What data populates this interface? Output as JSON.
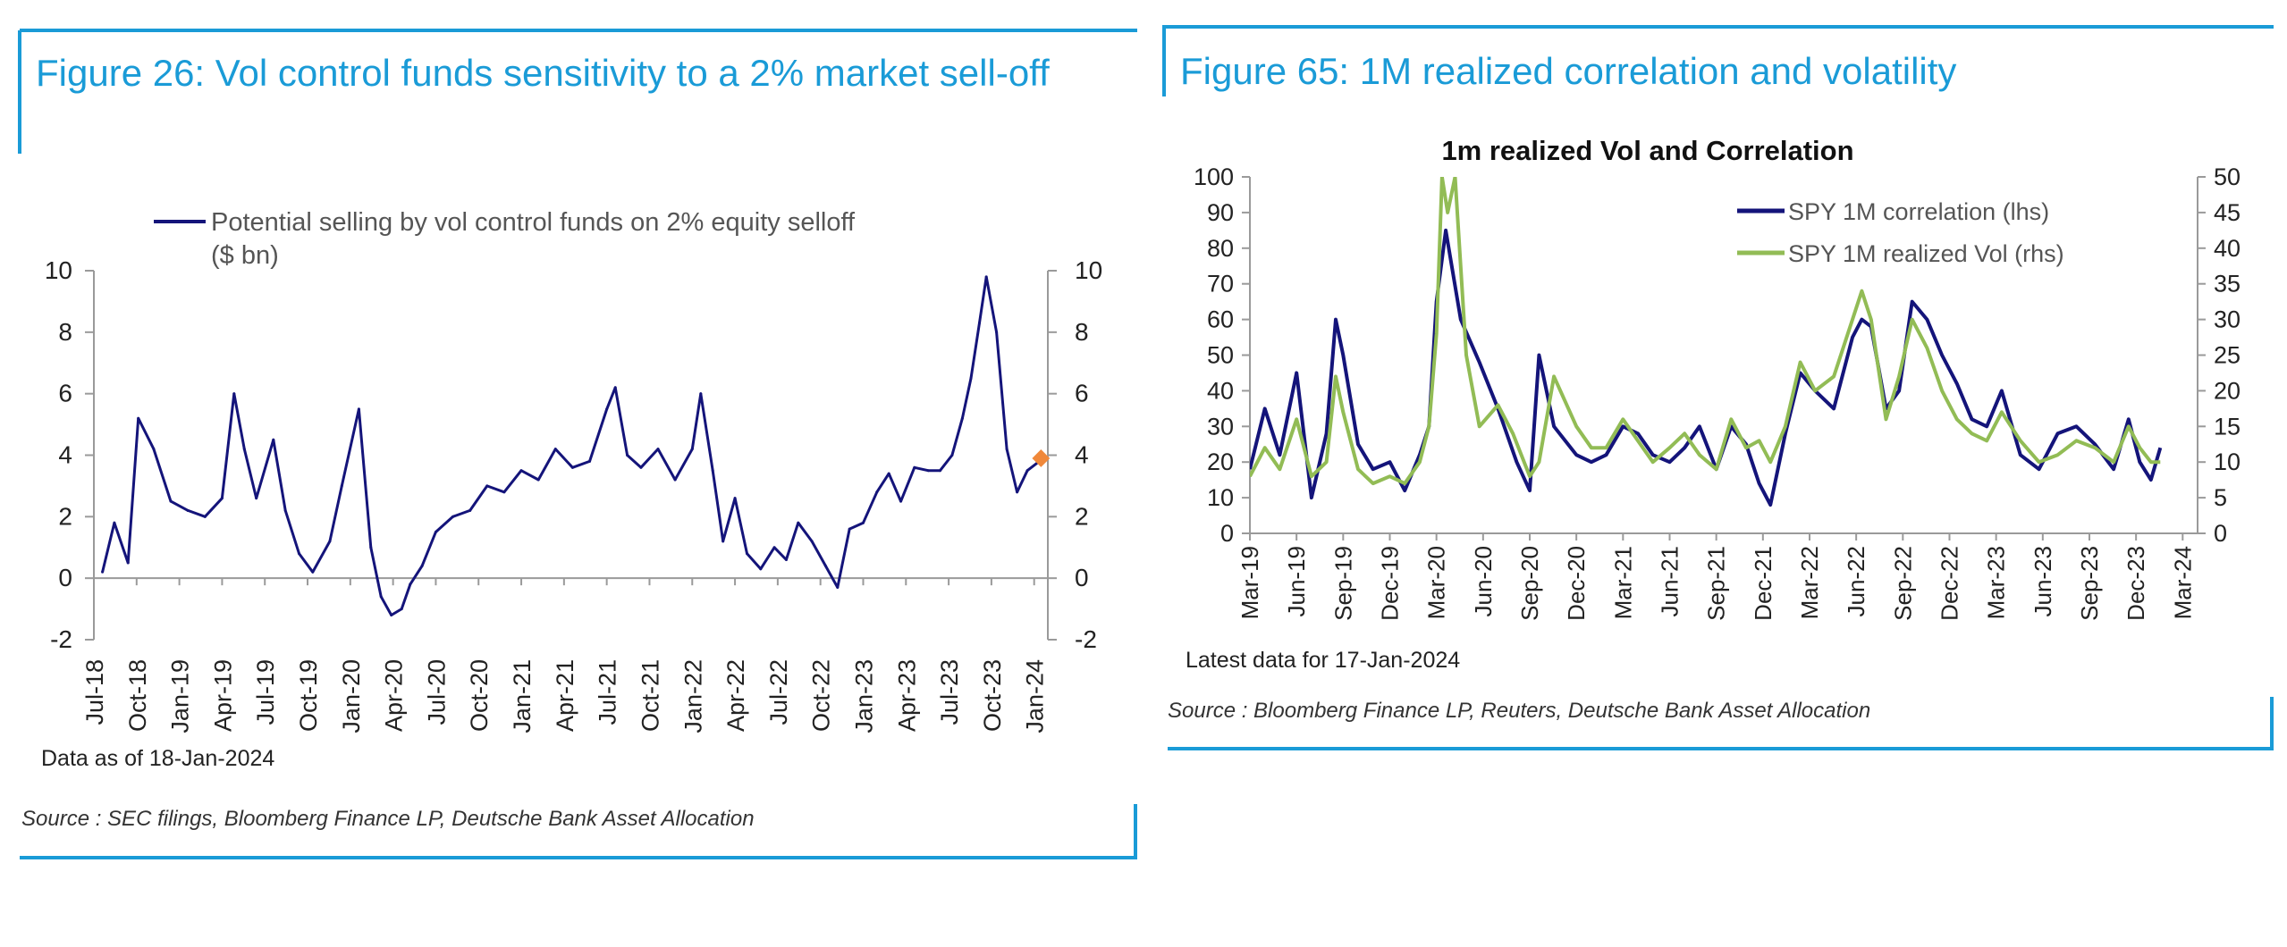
{
  "colors": {
    "title": "#1a9bd7",
    "rule": "#1a9bd7",
    "navy": "#14147a",
    "green": "#92bc55",
    "marker": "#f0883a",
    "axis": "#9a9a9a"
  },
  "fig26": {
    "title": "Figure 26: Vol control funds sensitivity to a 2% market sell-off",
    "legend": "Potential selling by vol control funds on 2% equity selloff ($ bn)",
    "note": "Data as of 18-Jan-2024",
    "source": "Source : SEC filings, Bloomberg Finance LP, Deutsche Bank Asset Allocation"
  },
  "fig65": {
    "title": "Figure 65: 1M realized correlation and volatility",
    "note": "Latest data for 17-Jan-2024",
    "source": "Source : Bloomberg Finance LP, Reuters, Deutsche Bank Asset Allocation"
  },
  "chart_data": [
    {
      "type": "line",
      "id": "fig26",
      "title": "",
      "legend_position": "top",
      "ylabel": "$ bn",
      "ylim": [
        -2,
        10
      ],
      "yticks": [
        -2,
        0,
        2,
        4,
        6,
        8,
        10
      ],
      "xlim": [
        2018.5,
        2024.08
      ],
      "xtick_labels": [
        "Jul-18",
        "Oct-18",
        "Jan-19",
        "Apr-19",
        "Jul-19",
        "Oct-19",
        "Jan-20",
        "Apr-20",
        "Jul-20",
        "Oct-20",
        "Jan-21",
        "Apr-21",
        "Jul-21",
        "Oct-21",
        "Jan-22",
        "Apr-22",
        "Jul-22",
        "Oct-22",
        "Jan-23",
        "Apr-23",
        "Jul-23",
        "Oct-23",
        "Jan-24"
      ],
      "xtick_values": [
        2018.5,
        2018.75,
        2019.0,
        2019.25,
        2019.5,
        2019.75,
        2020.0,
        2020.25,
        2020.5,
        2020.75,
        2021.0,
        2021.25,
        2021.5,
        2021.75,
        2022.0,
        2022.25,
        2022.5,
        2022.75,
        2023.0,
        2023.25,
        2023.5,
        2023.75,
        2024.0
      ],
      "series": [
        {
          "name": "Potential selling by vol control funds on 2% equity selloff ($ bn)",
          "x": [
            2018.55,
            2018.62,
            2018.7,
            2018.76,
            2018.85,
            2018.95,
            2019.05,
            2019.15,
            2019.25,
            2019.32,
            2019.38,
            2019.45,
            2019.55,
            2019.62,
            2019.7,
            2019.78,
            2019.88,
            2019.95,
            2020.05,
            2020.12,
            2020.18,
            2020.24,
            2020.3,
            2020.35,
            2020.42,
            2020.5,
            2020.6,
            2020.7,
            2020.8,
            2020.9,
            2021.0,
            2021.1,
            2021.2,
            2021.3,
            2021.4,
            2021.5,
            2021.55,
            2021.62,
            2021.7,
            2021.8,
            2021.9,
            2022.0,
            2022.05,
            2022.12,
            2022.18,
            2022.25,
            2022.32,
            2022.4,
            2022.48,
            2022.55,
            2022.62,
            2022.7,
            2022.78,
            2022.85,
            2022.92,
            2023.0,
            2023.08,
            2023.15,
            2023.22,
            2023.3,
            2023.38,
            2023.45,
            2023.52,
            2023.58,
            2023.63,
            2023.68,
            2023.72,
            2023.78,
            2023.84,
            2023.9,
            2023.96,
            2024.03
          ],
          "values": [
            0.2,
            1.8,
            0.5,
            5.2,
            4.2,
            2.5,
            2.2,
            2.0,
            2.6,
            6.0,
            4.2,
            2.6,
            4.5,
            2.2,
            0.8,
            0.2,
            1.2,
            3.0,
            5.5,
            1.0,
            -0.6,
            -1.2,
            -1.0,
            -0.2,
            0.4,
            1.5,
            2.0,
            2.2,
            3.0,
            2.8,
            3.5,
            3.2,
            4.2,
            3.6,
            3.8,
            5.5,
            6.2,
            4.0,
            3.6,
            4.2,
            3.2,
            4.2,
            6.0,
            3.5,
            1.2,
            2.6,
            0.8,
            0.3,
            1.0,
            0.6,
            1.8,
            1.2,
            0.4,
            -0.3,
            1.6,
            1.8,
            2.8,
            3.4,
            2.5,
            3.6,
            3.5,
            3.5,
            4.0,
            5.2,
            6.5,
            8.3,
            9.8,
            8.0,
            4.2,
            2.8,
            3.5,
            3.8
          ]
        }
      ],
      "marker": {
        "x": 2024.04,
        "y": 3.9
      }
    },
    {
      "type": "line",
      "id": "fig65",
      "title": "1m realized Vol and Correlation",
      "legend_position": "top-right",
      "ylim_left": [
        0,
        100
      ],
      "yticks_left": [
        0,
        10,
        20,
        30,
        40,
        50,
        60,
        70,
        80,
        90,
        100
      ],
      "ylim_right": [
        0,
        50
      ],
      "yticks_right": [
        0,
        5,
        10,
        15,
        20,
        25,
        30,
        35,
        40,
        45,
        50
      ],
      "xlim": [
        2019.17,
        2024.25
      ],
      "xtick_labels": [
        "Mar-19",
        "Jun-19",
        "Sep-19",
        "Dec-19",
        "Mar-20",
        "Jun-20",
        "Sep-20",
        "Dec-20",
        "Mar-21",
        "Jun-21",
        "Sep-21",
        "Dec-21",
        "Mar-22",
        "Jun-22",
        "Sep-22",
        "Dec-22",
        "Mar-23",
        "Jun-23",
        "Sep-23",
        "Dec-23",
        "Mar-24"
      ],
      "xtick_values": [
        2019.17,
        2019.42,
        2019.67,
        2019.92,
        2020.17,
        2020.42,
        2020.67,
        2020.92,
        2021.17,
        2021.42,
        2021.67,
        2021.92,
        2022.17,
        2022.42,
        2022.67,
        2022.92,
        2023.17,
        2023.42,
        2023.67,
        2023.92,
        2024.17
      ],
      "series": [
        {
          "name": "SPY 1M correlation (lhs)",
          "axis": "left",
          "x": [
            2019.17,
            2019.25,
            2019.33,
            2019.42,
            2019.5,
            2019.58,
            2019.63,
            2019.67,
            2019.75,
            2019.83,
            2019.92,
            2020.0,
            2020.08,
            2020.13,
            2020.17,
            2020.22,
            2020.3,
            2020.4,
            2020.5,
            2020.6,
            2020.67,
            2020.72,
            2020.8,
            2020.92,
            2021.0,
            2021.08,
            2021.17,
            2021.25,
            2021.33,
            2021.42,
            2021.5,
            2021.58,
            2021.67,
            2021.75,
            2021.83,
            2021.9,
            2021.96,
            2022.04,
            2022.12,
            2022.2,
            2022.3,
            2022.4,
            2022.45,
            2022.5,
            2022.58,
            2022.65,
            2022.72,
            2022.8,
            2022.88,
            2022.96,
            2023.04,
            2023.12,
            2023.2,
            2023.3,
            2023.4,
            2023.5,
            2023.6,
            2023.7,
            2023.8,
            2023.88,
            2023.94,
            2024.0,
            2024.05
          ],
          "values": [
            18,
            35,
            22,
            45,
            10,
            28,
            60,
            50,
            25,
            18,
            20,
            12,
            22,
            30,
            65,
            85,
            60,
            48,
            35,
            20,
            12,
            50,
            30,
            22,
            20,
            22,
            30,
            28,
            22,
            20,
            24,
            30,
            18,
            30,
            25,
            14,
            8,
            28,
            45,
            40,
            35,
            55,
            60,
            58,
            35,
            40,
            65,
            60,
            50,
            42,
            32,
            30,
            40,
            22,
            18,
            28,
            30,
            25,
            18,
            32,
            20,
            15,
            24
          ]
        },
        {
          "name": "SPY 1M realized Vol (rhs)",
          "axis": "right",
          "x": [
            2019.17,
            2019.25,
            2019.33,
            2019.42,
            2019.5,
            2019.58,
            2019.63,
            2019.67,
            2019.75,
            2019.83,
            2019.92,
            2020.0,
            2020.08,
            2020.13,
            2020.17,
            2020.2,
            2020.23,
            2020.27,
            2020.33,
            2020.4,
            2020.5,
            2020.58,
            2020.67,
            2020.72,
            2020.8,
            2020.92,
            2021.0,
            2021.08,
            2021.17,
            2021.25,
            2021.33,
            2021.42,
            2021.5,
            2021.58,
            2021.67,
            2021.75,
            2021.83,
            2021.9,
            2021.96,
            2022.04,
            2022.12,
            2022.2,
            2022.3,
            2022.4,
            2022.45,
            2022.5,
            2022.58,
            2022.65,
            2022.72,
            2022.8,
            2022.88,
            2022.96,
            2023.04,
            2023.12,
            2023.2,
            2023.3,
            2023.4,
            2023.5,
            2023.6,
            2023.7,
            2023.8,
            2023.88,
            2023.94,
            2024.0,
            2024.05
          ],
          "values": [
            8,
            12,
            9,
            16,
            8,
            10,
            22,
            17,
            9,
            7,
            8,
            7,
            10,
            15,
            28,
            50,
            45,
            50,
            25,
            15,
            18,
            14,
            8,
            10,
            22,
            15,
            12,
            12,
            16,
            13,
            10,
            12,
            14,
            11,
            9,
            16,
            12,
            13,
            10,
            15,
            24,
            20,
            22,
            30,
            34,
            30,
            16,
            22,
            30,
            26,
            20,
            16,
            14,
            13,
            17,
            13,
            10,
            11,
            13,
            12,
            10,
            15,
            12,
            10,
            10
          ]
        }
      ]
    }
  ]
}
